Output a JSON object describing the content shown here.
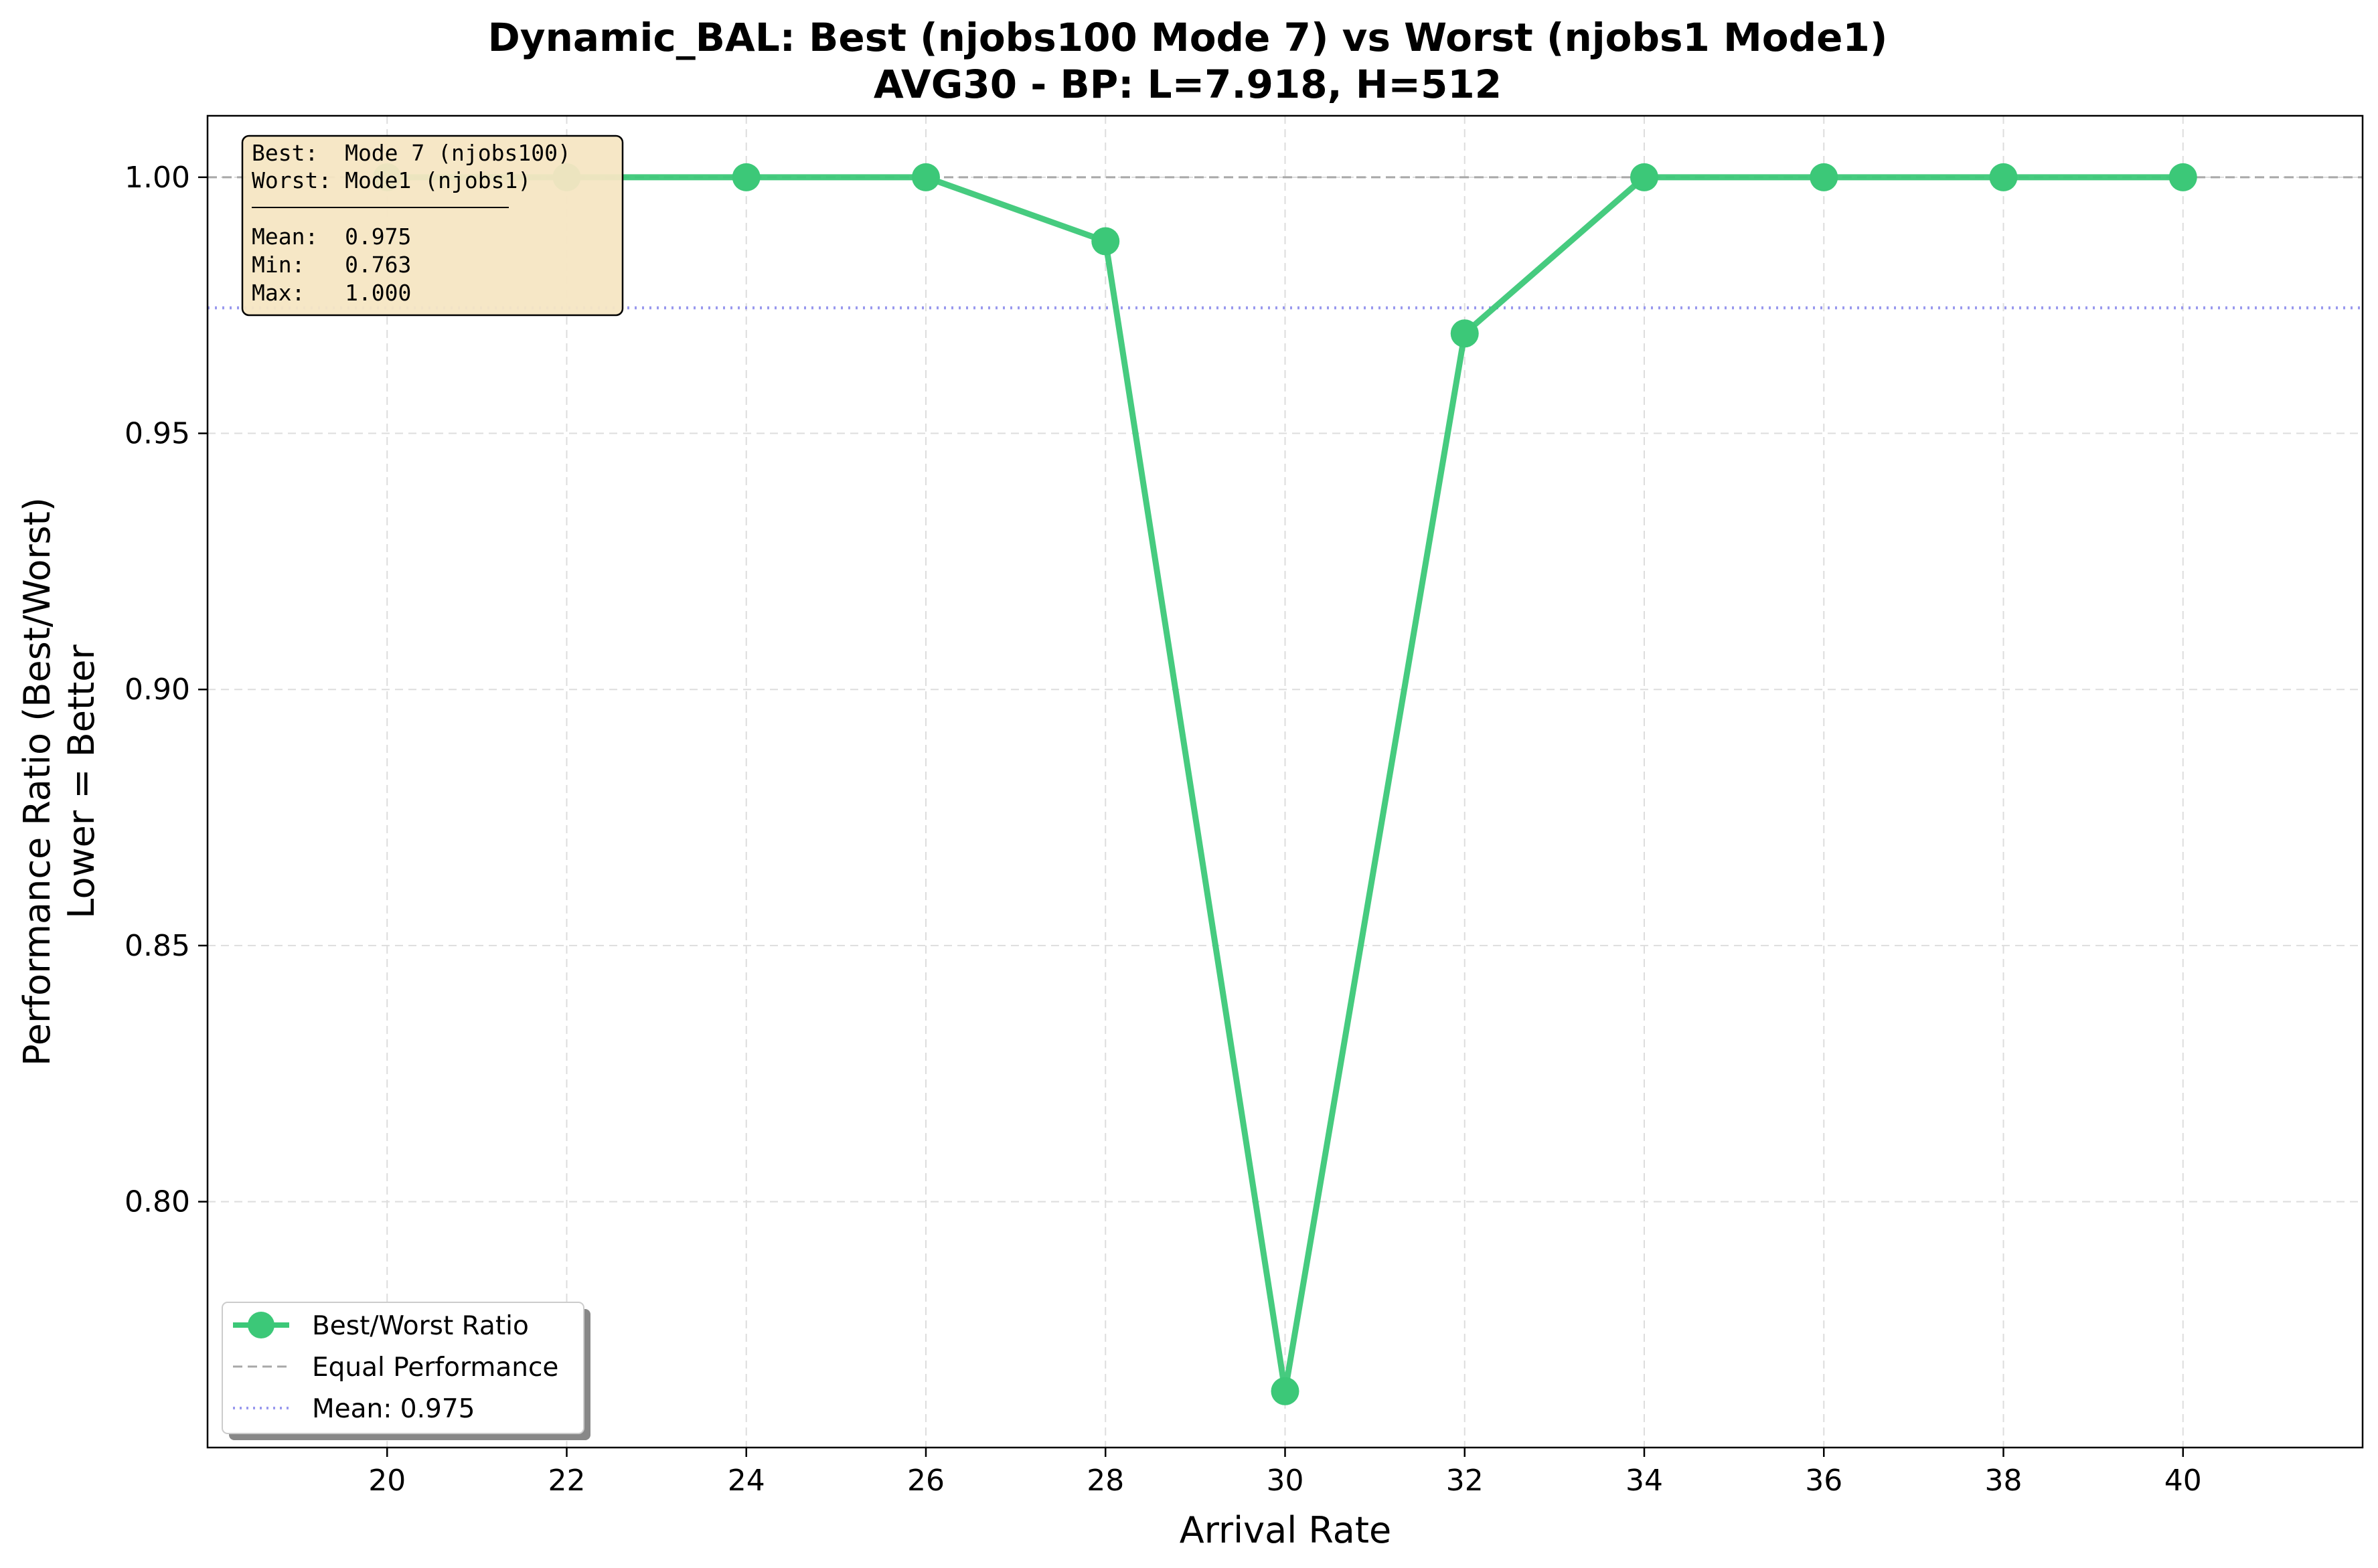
{
  "chart_data": {
    "type": "line",
    "title": "Dynamic_BAL: Best (njobs100 Mode 7) vs Worst (njobs1 Mode1)",
    "subtitle": "AVG30 - BP: L=7.918, H=512",
    "xlabel": "Arrival Rate",
    "ylabel_line1": "Performance Ratio (Best/Worst)",
    "ylabel_line2": "Lower = Better",
    "xlim": [
      18,
      42
    ],
    "ylim": [
      0.752,
      1.012
    ],
    "x_ticks": [
      20,
      22,
      24,
      26,
      28,
      30,
      32,
      34,
      36,
      38,
      40
    ],
    "y_ticks": [
      0.8,
      0.85,
      0.9,
      0.95,
      1.0
    ],
    "y_tick_labels": [
      "0.80",
      "0.85",
      "0.90",
      "0.95",
      "1.00"
    ],
    "grid": true,
    "legend_position": "lower-left",
    "series": [
      {
        "name": "Best/Worst Ratio",
        "color": "#3cc878",
        "style": "solid-with-markers",
        "x": [
          20,
          22,
          24,
          26,
          28,
          30,
          32,
          34,
          36,
          38,
          40
        ],
        "y": [
          1.0,
          1.0,
          1.0,
          1.0,
          0.9875,
          0.763,
          0.9695,
          1.0,
          1.0,
          1.0,
          1.0
        ]
      }
    ],
    "reference_lines": [
      {
        "name": "Equal Performance",
        "y": 1.0,
        "color": "#a8a8a8",
        "style": "dashed"
      },
      {
        "name": "Mean: 0.975",
        "y": 0.9745,
        "color": "#9999ee",
        "style": "dotted"
      }
    ],
    "stats_box": {
      "lines": [
        "Best:  Mode 7 (njobs100)",
        "Worst: Mode1 (njobs1)",
        "──────────────────",
        "Mean:  0.975",
        "Min:   0.763",
        "Max:   1.000"
      ],
      "background": "#f5e6c3"
    }
  }
}
